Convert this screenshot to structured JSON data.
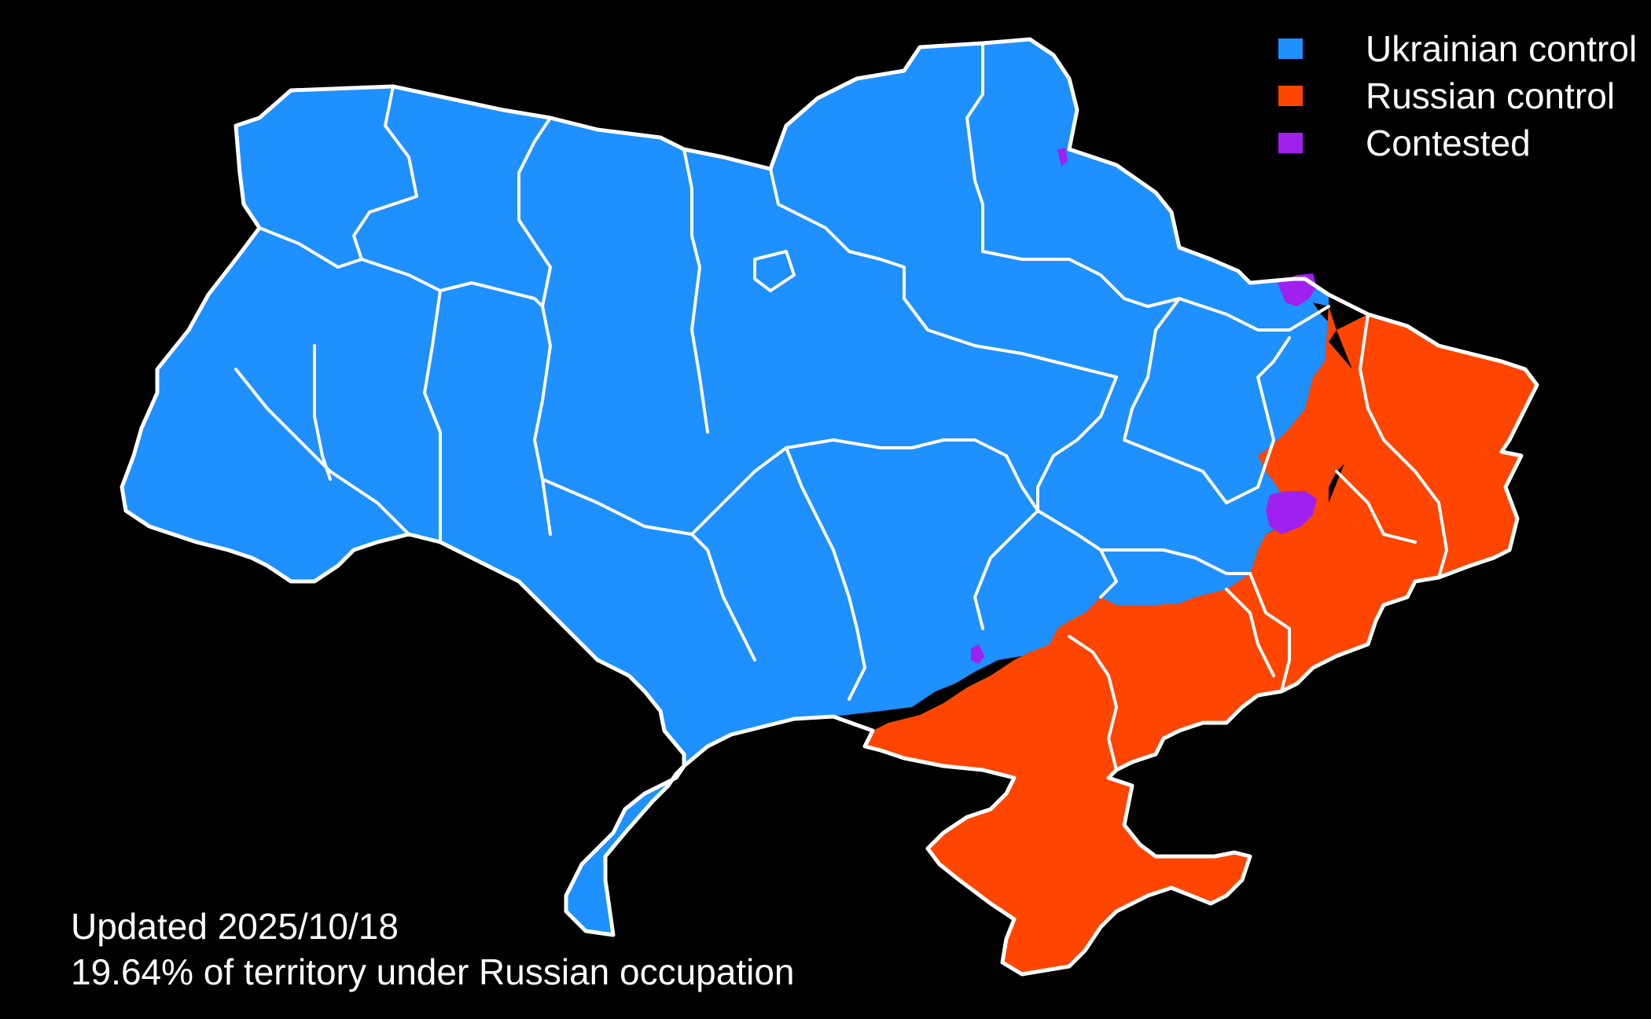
{
  "legend": {
    "items": [
      {
        "label": "Ukrainian control",
        "color": "#1e90ff",
        "icon": "square-swatch"
      },
      {
        "label": "Russian control",
        "color": "#ff4500",
        "icon": "square-swatch"
      },
      {
        "label": "Contested",
        "color": "#a020f0",
        "icon": "square-swatch"
      }
    ]
  },
  "caption": {
    "updated": "Updated 2025/10/18",
    "occupation": "19.64% of territory under Russian occupation"
  },
  "colors": {
    "background": "#000000",
    "ukrainian": "#1e90ff",
    "russian": "#ff4500",
    "contested": "#a020f0",
    "borders": "#ffffff"
  }
}
